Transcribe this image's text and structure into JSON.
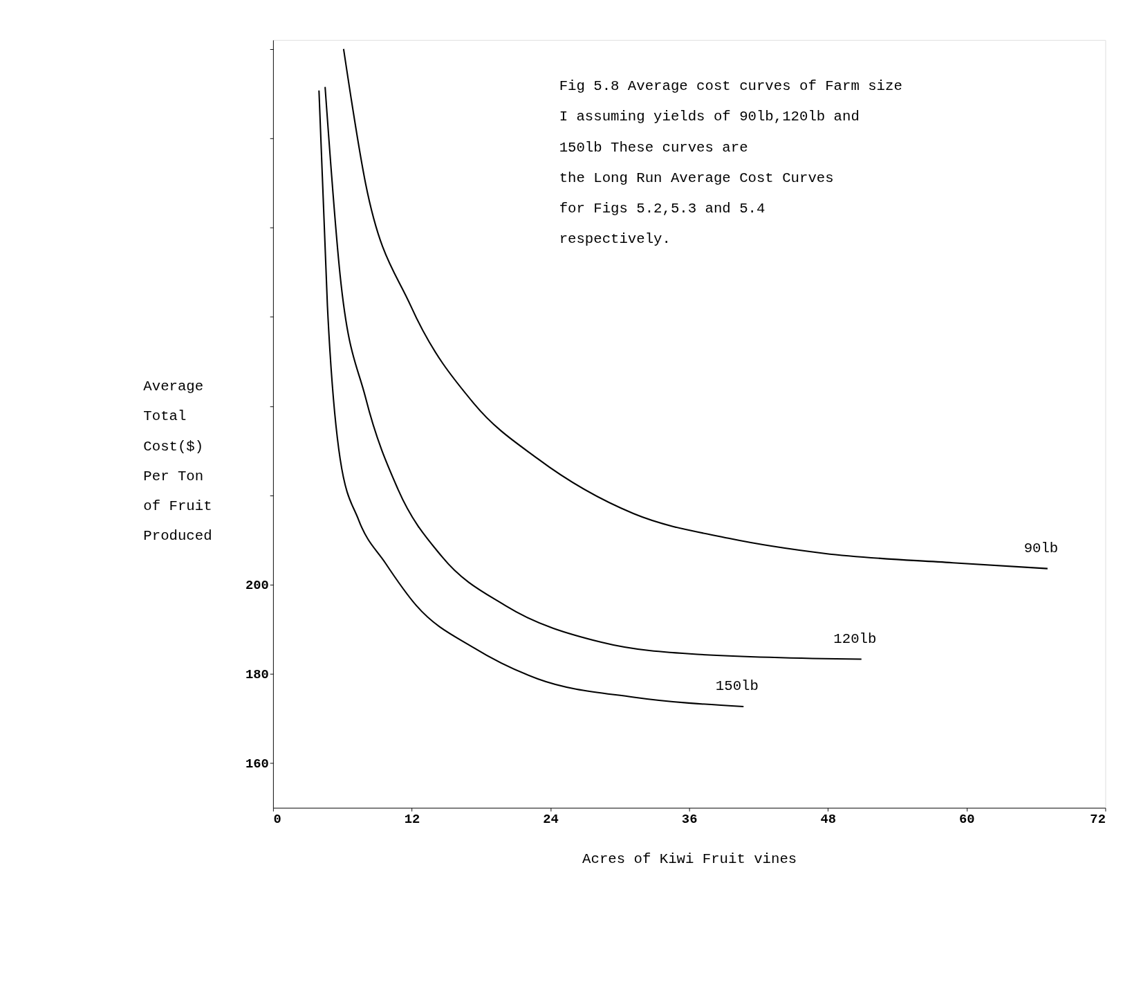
{
  "chart_data": {
    "type": "line",
    "xlabel": "Acres of Kiwi Fruit vines",
    "ylabel": "Average\nTotal\nCost($)\nPer Ton\nof Fruit\nProduced",
    "annotations": [
      "Fig 5.8  Average cost curves of Farm size\nI assuming yields of 90lb,120lb and\n150lb These curves are\nthe Long Run Average Cost Curves\nfor Figs 5.2,5.3 and 5.4\nrespectively."
    ],
    "xlim": [
      0,
      72
    ],
    "xticks": [
      {
        "value": 0,
        "label": "0"
      },
      12,
      24,
      36,
      48,
      60,
      72
    ],
    "ylim": [
      150,
      322
    ],
    "yticks": [
      160,
      180,
      200,
      {
        "value": 220,
        "label": null
      },
      {
        "value": 240,
        "label": null
      },
      {
        "value": 260,
        "label": null
      },
      {
        "value": 280,
        "label": null
      },
      {
        "value": 300,
        "label": null
      },
      {
        "value": 320,
        "label": null
      }
    ],
    "grid": false,
    "marker": "none",
    "line_style": "solid",
    "series": [
      {
        "name": "90lb",
        "color": "#000000",
        "x": [
          6.1,
          8.0,
          11.9,
          17.4,
          22.9,
          31.2,
          39.4,
          47.7,
          58.8,
          67.0
        ],
        "values": [
          320,
          289.9,
          262.5,
          240.5,
          228.2,
          215.9,
          210.4,
          207,
          204.9,
          203.6
        ]
      },
      {
        "name": "120lb",
        "color": "#000000",
        "x": [
          4.5,
          5.8,
          8.0,
          10.8,
          14.6,
          20.1,
          28.4,
          36.7,
          50.9
        ],
        "values": [
          311.5,
          269.3,
          241.9,
          221.4,
          206.3,
          195.3,
          187.1,
          184.4,
          183.3
        ]
      },
      {
        "name": "150lb",
        "color": "#000000",
        "x": [
          3.97,
          4.7,
          5.8,
          7.4,
          9.7,
          12.4,
          17.4,
          22.9,
          31.2,
          40.7
        ],
        "values": [
          310.7,
          262.5,
          228.2,
          214.5,
          204.9,
          195.3,
          185.8,
          178.9,
          174.8,
          172.7
        ]
      }
    ]
  }
}
